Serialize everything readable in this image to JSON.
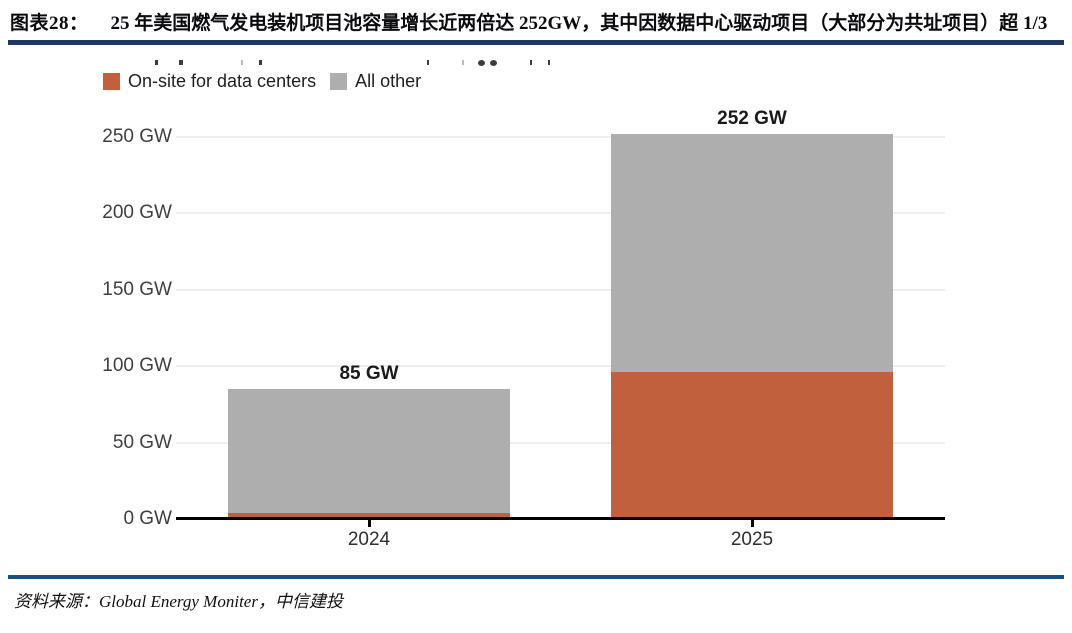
{
  "header": {
    "label": "图表28：",
    "title": "25 年美国燃气发电装机项目池容量增长近两倍达 252GW，其中因数据中心驱动项目（大部分为共址项目）超 1/3"
  },
  "source": {
    "text": "资料来源：Global Energy Moniter，中信建投"
  },
  "colors": {
    "on_site": "#c1603c",
    "all_other": "#aeaeae",
    "header_rule": "#1f3864",
    "footer_rule": "#17527f",
    "axis": "#000000",
    "gridline": "#ededed"
  },
  "chart_data": {
    "type": "bar",
    "stacked": true,
    "title": "",
    "xlabel": "",
    "ylabel": "",
    "categories": [
      "2024",
      "2025"
    ],
    "series": [
      {
        "name": "On-site for data centers",
        "color": "#c1603c",
        "values": [
          4,
          96
        ]
      },
      {
        "name": "All other",
        "color": "#aeaeae",
        "values": [
          81,
          156
        ]
      }
    ],
    "totals": [
      85,
      252
    ],
    "total_labels": [
      "85 GW",
      "252 GW"
    ],
    "yticks": [
      0,
      50,
      100,
      150,
      200,
      250
    ],
    "ytick_labels": [
      "0 GW",
      "50 GW",
      "100 GW",
      "150 GW",
      "200 GW",
      "250 GW"
    ],
    "ylim": [
      0,
      260
    ],
    "grid": true,
    "legend_position": "top-left"
  }
}
